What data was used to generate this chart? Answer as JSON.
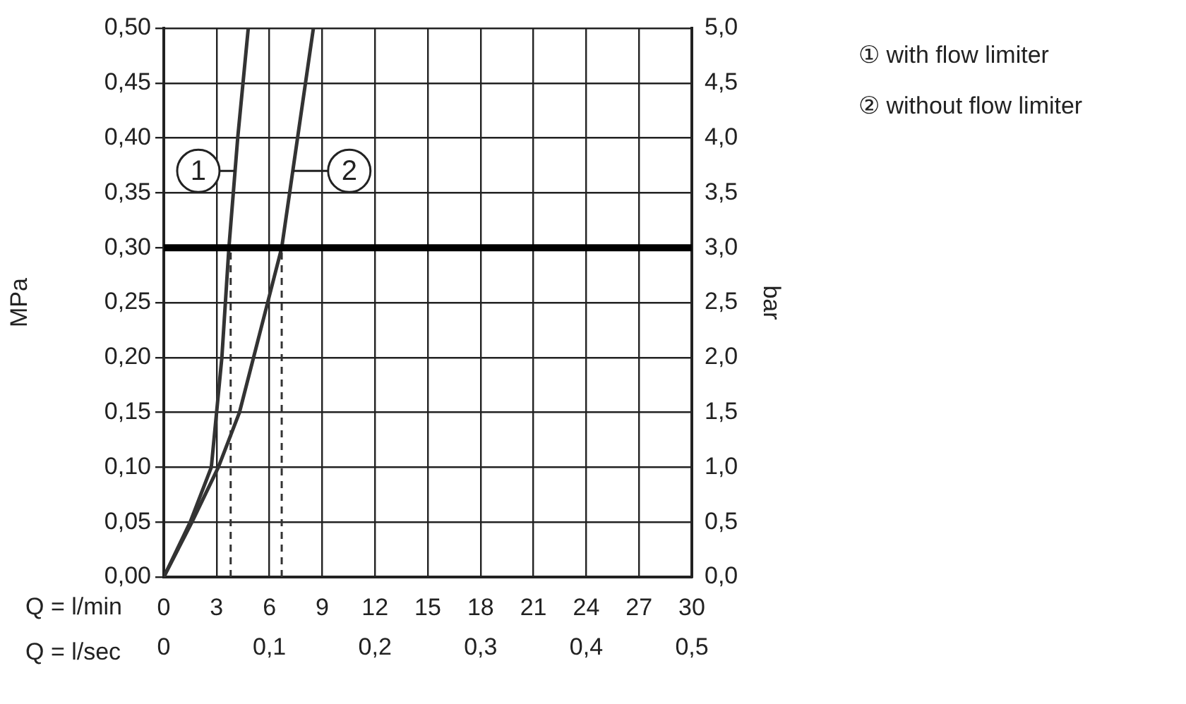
{
  "chart_data": {
    "type": "line",
    "xlabel": "Q = l/min",
    "x2label": "Q = l/sec",
    "ylabel": "MPa",
    "y2label": "bar",
    "xlim": [
      0,
      30
    ],
    "xticks": [
      0,
      3,
      6,
      9,
      12,
      15,
      18,
      21,
      24,
      27,
      30
    ],
    "x2lim": [
      0,
      0.5
    ],
    "x2ticks": [
      0,
      {
        "value": 0.1,
        "label": "0,1"
      },
      {
        "value": 0.2,
        "label": "0,2"
      },
      {
        "value": 0.3,
        "label": "0,3"
      },
      {
        "value": 0.4,
        "label": "0,4"
      },
      {
        "value": 0.5,
        "label": "0,5"
      }
    ],
    "ylim": [
      0,
      0.5
    ],
    "yticks": [
      {
        "value": 0,
        "label": "0,00"
      },
      {
        "value": 0.05,
        "label": "0,05"
      },
      {
        "value": 0.1,
        "label": "0,10"
      },
      {
        "value": 0.15,
        "label": "0,15"
      },
      {
        "value": 0.2,
        "label": "0,20"
      },
      {
        "value": 0.25,
        "label": "0,25"
      },
      {
        "value": 0.3,
        "label": "0,30"
      },
      {
        "value": 0.35,
        "label": "0,35"
      },
      {
        "value": 0.4,
        "label": "0,40"
      },
      {
        "value": 0.45,
        "label": "0,45"
      },
      {
        "value": 0.5,
        "label": "0,50"
      }
    ],
    "y2lim": [
      0,
      5
    ],
    "y2ticks": [
      {
        "value": 0,
        "label": "0,0"
      },
      {
        "value": 0.5,
        "label": "0,5"
      },
      {
        "value": 1,
        "label": "1,0"
      },
      {
        "value": 1.5,
        "label": "1,5"
      },
      {
        "value": 2,
        "label": "2,0"
      },
      {
        "value": 2.5,
        "label": "2,5"
      },
      {
        "value": 3,
        "label": "3,0"
      },
      {
        "value": 3.5,
        "label": "3,5"
      },
      {
        "value": 4,
        "label": "4,0"
      },
      {
        "value": 4.5,
        "label": "4,5"
      },
      {
        "value": 5,
        "label": "5,0"
      }
    ],
    "grid": true,
    "legend": "top right",
    "marker": "none",
    "series": [
      {
        "name": "① with flow limiter",
        "color": "#333333",
        "x": [
          0,
          1.5,
          2.7,
          3.3,
          3.7,
          4.2,
          4.8
        ],
        "values": [
          0,
          0.05,
          0.1,
          0.2,
          0.3,
          0.4,
          0.5
        ]
      },
      {
        "name": "② without flow limiter",
        "color": "#333333",
        "x": [
          0,
          1.6,
          3.1,
          4.3,
          5.1,
          5.9,
          6.7,
          7.6,
          8.5
        ],
        "values": [
          0,
          0.05,
          0.1,
          0.15,
          0.2,
          0.25,
          0.3,
          0.4,
          0.5
        ]
      },
      {
        "color": "#333333",
        "line_style": "dashed",
        "x": [
          3.8,
          3.8
        ],
        "values": [
          0,
          0.3
        ]
      },
      {
        "color": "#333333",
        "line_style": "dashed",
        "x": [
          6.7,
          6.7
        ],
        "values": [
          0,
          0.3
        ]
      }
    ],
    "ref_lines": [
      {
        "axis": "y",
        "value": 0.3,
        "color": "#000000"
      }
    ],
    "annotations": [
      {
        "text": "1",
        "x": 4.05,
        "y": 0.37
      },
      {
        "text": "2",
        "x": 7.33,
        "y": 0.37
      }
    ]
  }
}
